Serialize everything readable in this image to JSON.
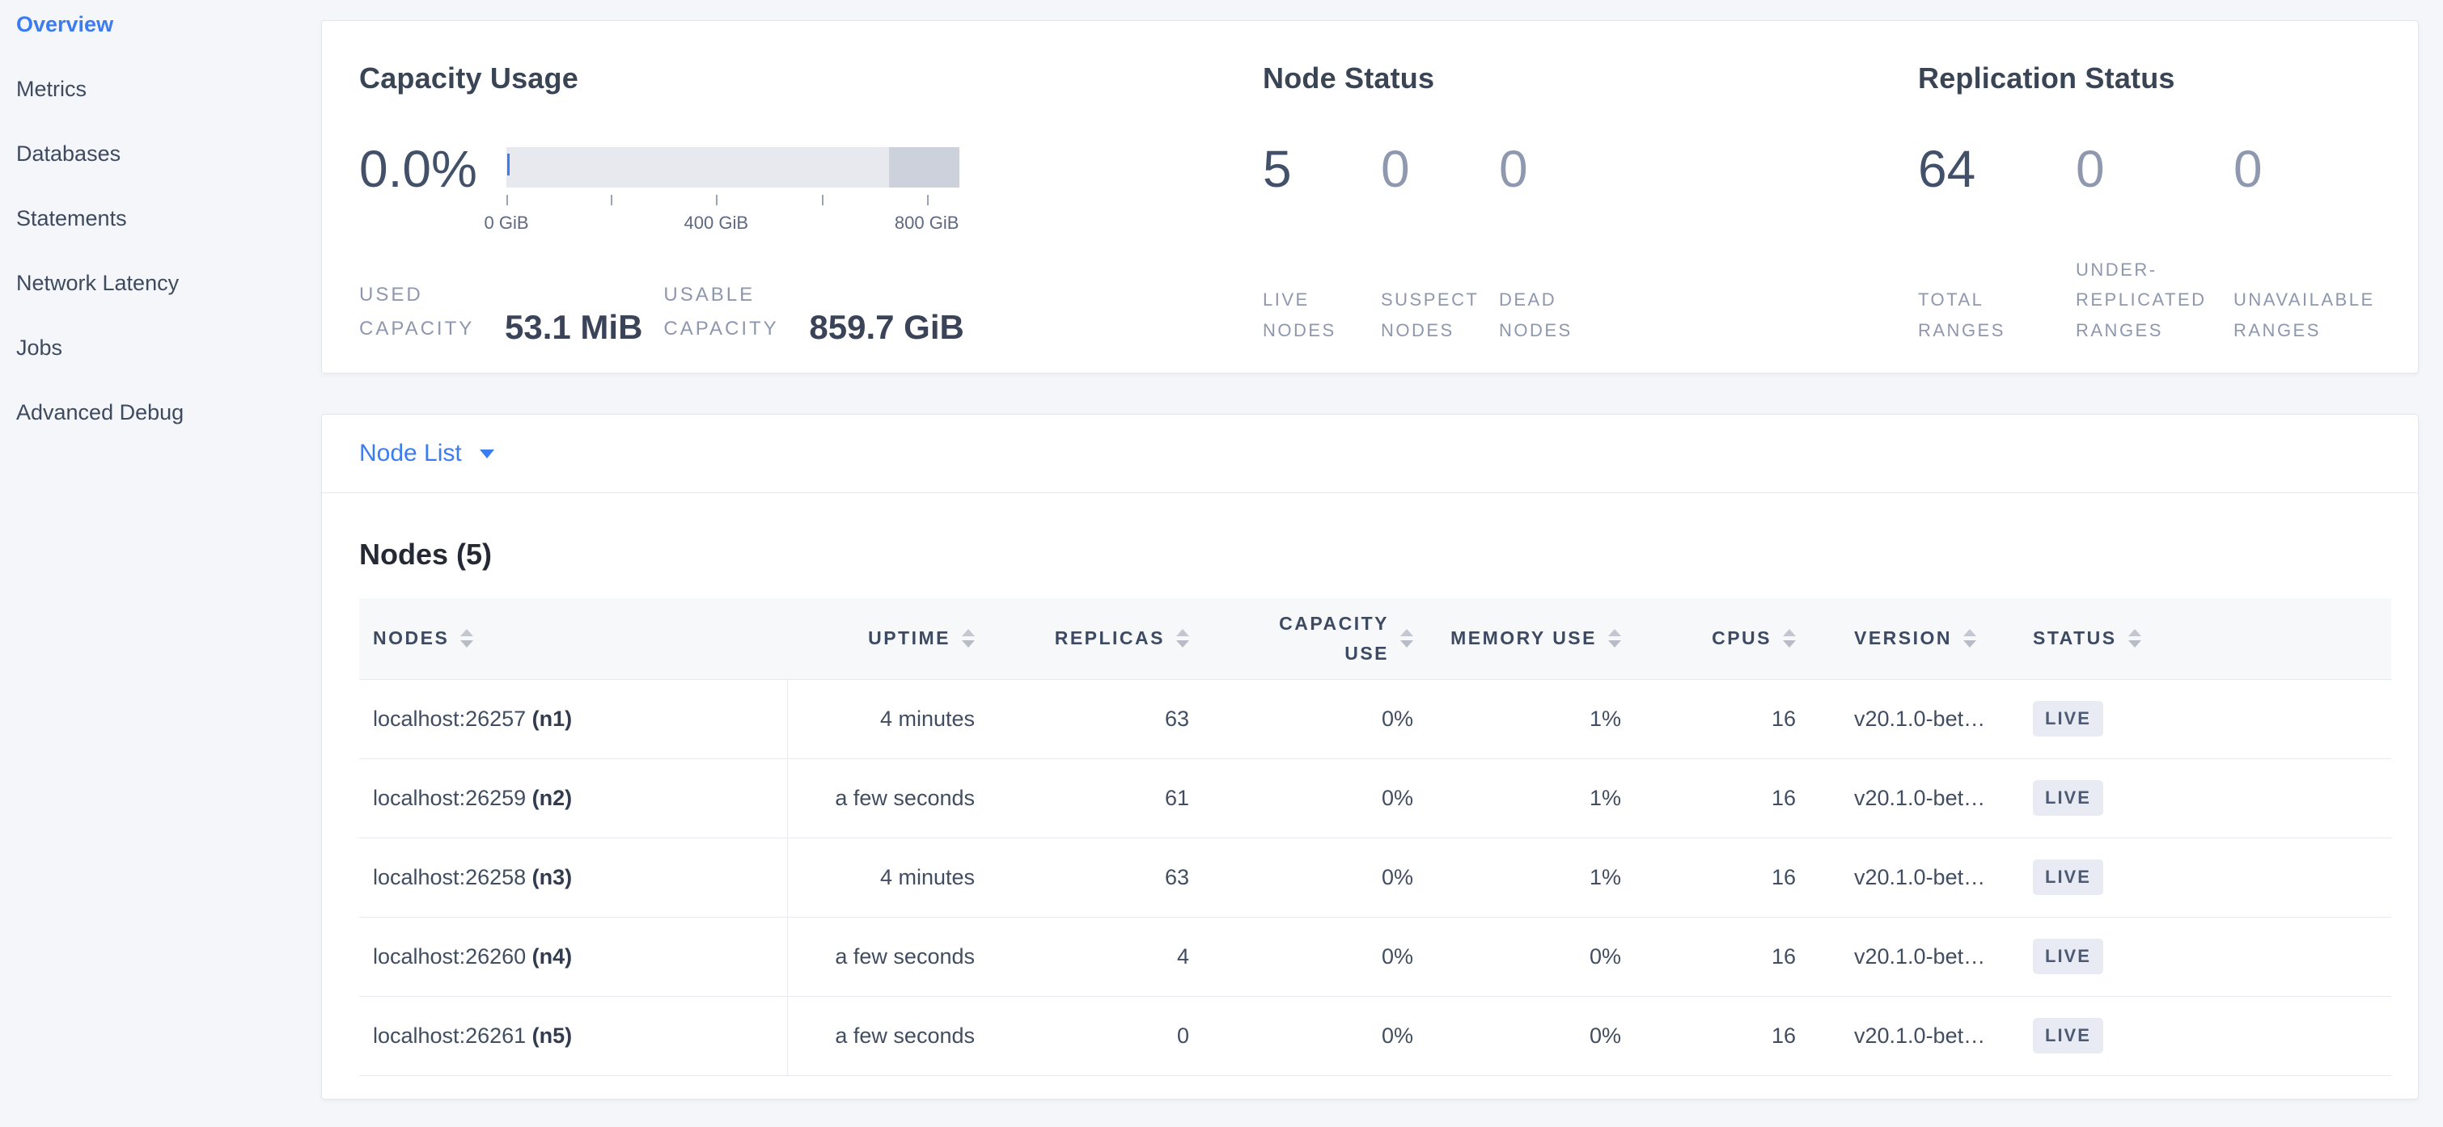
{
  "sidebar": {
    "items": [
      {
        "label": "Overview",
        "active": true
      },
      {
        "label": "Metrics",
        "active": false
      },
      {
        "label": "Databases",
        "active": false
      },
      {
        "label": "Statements",
        "active": false
      },
      {
        "label": "Network Latency",
        "active": false
      },
      {
        "label": "Jobs",
        "active": false
      },
      {
        "label": "Advanced Debug",
        "active": false
      }
    ]
  },
  "summary": {
    "capacity": {
      "title": "Capacity Usage",
      "percent": "0.0%",
      "bar": {
        "used_marker_pct": 0,
        "dark_segment_start_pct": 84.5,
        "tick_positions_pct": [
          0,
          23.1,
          46.3,
          69.6,
          92.8
        ],
        "axis_labels": [
          {
            "text": "0 GiB",
            "pct": 0
          },
          {
            "text": "400 GiB",
            "pct": 46.3
          },
          {
            "text": "800 GiB",
            "pct": 92.8
          }
        ]
      },
      "stats": [
        {
          "label": "USED CAPACITY",
          "value": "53.1 MiB"
        },
        {
          "label": "USABLE CAPACITY",
          "value": "859.7 GiB"
        }
      ]
    },
    "node_status": {
      "title": "Node Status",
      "stats": [
        {
          "value": "5",
          "label": "LIVE NODES",
          "muted": false
        },
        {
          "value": "0",
          "label": "SUSPECT NODES",
          "muted": true
        },
        {
          "value": "0",
          "label": "DEAD NODES",
          "muted": true
        }
      ]
    },
    "replication_status": {
      "title": "Replication Status",
      "stats": [
        {
          "value": "64",
          "label": "TOTAL RANGES",
          "muted": false
        },
        {
          "value": "0",
          "label": "UNDER-REPLICATED RANGES",
          "muted": true
        },
        {
          "value": "0",
          "label": "UNAVAILABLE RANGES",
          "muted": true
        }
      ]
    }
  },
  "node_list": {
    "label": "Node List"
  },
  "nodes": {
    "title": "Nodes (5)",
    "columns": [
      {
        "label": "NODES"
      },
      {
        "label": "UPTIME"
      },
      {
        "label": "REPLICAS"
      },
      {
        "label": "CAPACITY USE"
      },
      {
        "label": "MEMORY USE"
      },
      {
        "label": "CPUS"
      },
      {
        "label": "VERSION"
      },
      {
        "label": "STATUS"
      }
    ],
    "rows": [
      {
        "address": "localhost:26257",
        "id": "(n1)",
        "uptime": "4 minutes",
        "replicas": "63",
        "capacity_use": "0%",
        "memory_use": "1%",
        "cpus": "16",
        "version": "v20.1.0-bet…",
        "status": "LIVE"
      },
      {
        "address": "localhost:26259",
        "id": "(n2)",
        "uptime": "a few seconds",
        "replicas": "61",
        "capacity_use": "0%",
        "memory_use": "1%",
        "cpus": "16",
        "version": "v20.1.0-bet…",
        "status": "LIVE"
      },
      {
        "address": "localhost:26258",
        "id": "(n3)",
        "uptime": "4 minutes",
        "replicas": "63",
        "capacity_use": "0%",
        "memory_use": "1%",
        "cpus": "16",
        "version": "v20.1.0-bet…",
        "status": "LIVE"
      },
      {
        "address": "localhost:26260",
        "id": "(n4)",
        "uptime": "a few seconds",
        "replicas": "4",
        "capacity_use": "0%",
        "memory_use": "0%",
        "cpus": "16",
        "version": "v20.1.0-bet…",
        "status": "LIVE"
      },
      {
        "address": "localhost:26261",
        "id": "(n5)",
        "uptime": "a few seconds",
        "replicas": "0",
        "capacity_use": "0%",
        "memory_use": "0%",
        "cpus": "16",
        "version": "v20.1.0-bet…",
        "status": "LIVE"
      }
    ]
  },
  "colors": {
    "accent_blue": "#3b7cf0",
    "page_bg": "#f4f6fa",
    "heading_slate": "#394455",
    "big_number": "#42506a",
    "muted_number": "#8e98ae",
    "stat_label": "#8e97ad",
    "bar_light": "#e7e9ef",
    "bar_dark": "#ccd1dc",
    "badge_bg": "#e8ebf3",
    "badge_text": "#4c5a73"
  }
}
